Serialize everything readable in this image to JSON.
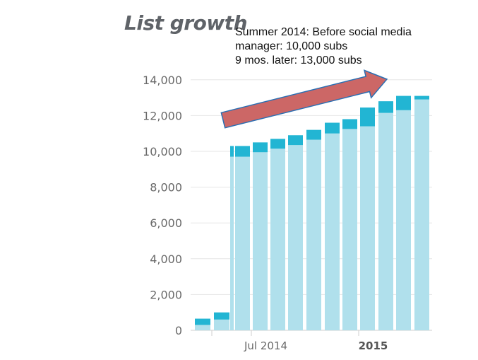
{
  "chart_data": {
    "type": "bar",
    "title": "List growth",
    "annotation": [
      "Summer 2014: Before social media",
      "manager: 10,000 subs",
      "9 mos. later: 13,000 subs"
    ],
    "xlabel": "",
    "ylabel": "",
    "ylim": [
      0,
      15000
    ],
    "yticks": [
      0,
      2000,
      4000,
      6000,
      8000,
      10000,
      12000,
      14000
    ],
    "ytick_labels": [
      "0",
      "2,000",
      "4,000",
      "6,000",
      "8,000",
      "10,000",
      "12,000",
      "14,000"
    ],
    "xtick_labels": [
      {
        "label": "Jul 2014",
        "bold": false,
        "bar_index": 4
      },
      {
        "label": "2015",
        "bold": true,
        "bar_index": 10
      }
    ],
    "stacked": true,
    "series": [
      {
        "values": [
          300,
          600,
          9700,
          9700,
          9950,
          10150,
          10350,
          10650,
          11000,
          11250,
          11400,
          12150,
          12300,
          12900
        ],
        "color": "#b0e0ec"
      },
      {
        "values": [
          350,
          400,
          600,
          600,
          550,
          550,
          550,
          550,
          600,
          550,
          1050,
          650,
          800,
          200
        ],
        "color": "#22b5d3"
      }
    ],
    "arrow": {
      "from": [
        2.5,
        11800
      ],
      "to": [
        9.6,
        14000
      ],
      "color": "#cc6766",
      "outline": "#2a6fb3"
    },
    "grid": true,
    "legend": "none"
  }
}
